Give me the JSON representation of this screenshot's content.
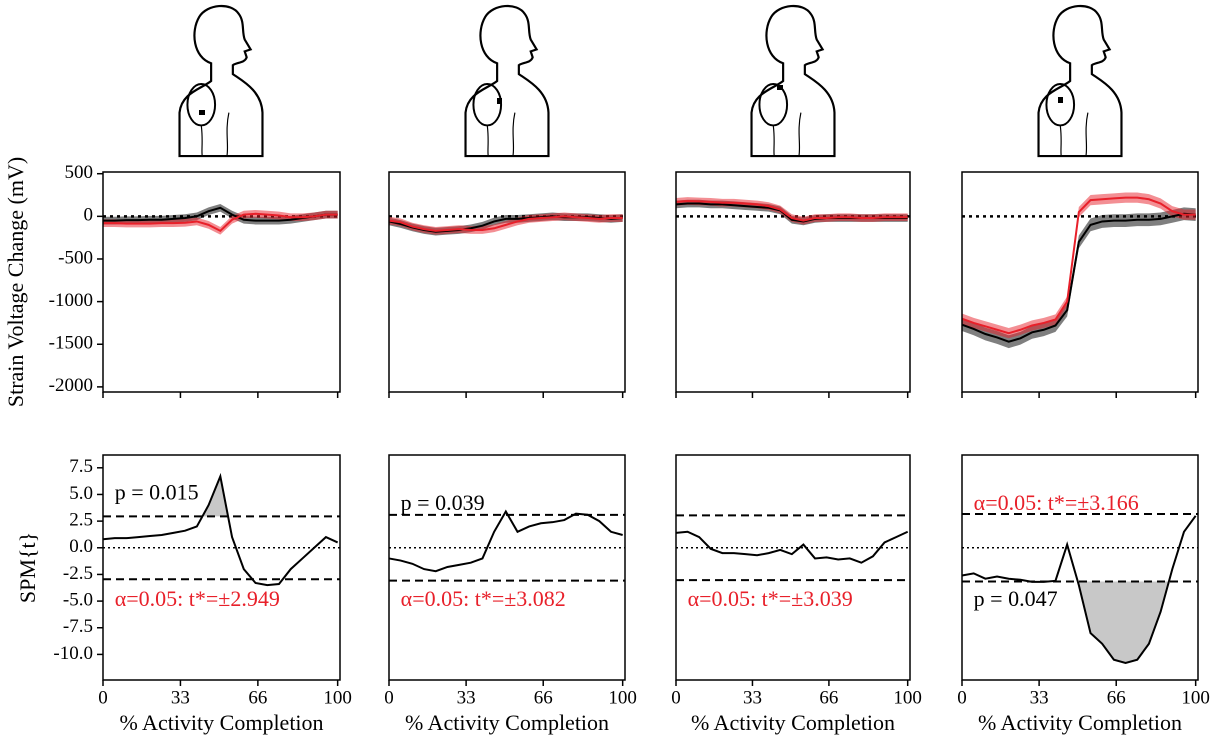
{
  "chart_data": [
    {
      "type": "band-line",
      "xlim": [
        0,
        101
      ],
      "ylim": [
        -2060,
        520
      ],
      "yticks": [
        500,
        0,
        -500,
        -1000,
        -1500,
        -2000
      ],
      "hline": 0,
      "ylabel": "Strain Voltage Change (mV)",
      "x": [
        0,
        5,
        10,
        15,
        20,
        25,
        30,
        35,
        40,
        45,
        50,
        55,
        60,
        65,
        70,
        75,
        80,
        85,
        90,
        95,
        100
      ],
      "series": [
        {
          "color": "#000000",
          "sd": 45,
          "values": [
            -50,
            -50,
            -45,
            -45,
            -40,
            -40,
            -30,
            -20,
            0,
            60,
            100,
            20,
            -40,
            -50,
            -50,
            -50,
            -40,
            -20,
            0,
            20,
            20
          ]
        },
        {
          "color": "#e8202a",
          "sd": 45,
          "values": [
            -80,
            -80,
            -85,
            -85,
            -85,
            -80,
            -80,
            -75,
            -60,
            -100,
            -170,
            -40,
            20,
            30,
            20,
            10,
            -10,
            -10,
            0,
            20,
            20
          ]
        }
      ]
    },
    {
      "type": "band-line",
      "xlim": [
        0,
        101
      ],
      "ylim": [
        -2060,
        520
      ],
      "hline": 0,
      "x": [
        0,
        5,
        10,
        15,
        20,
        25,
        30,
        35,
        40,
        45,
        50,
        55,
        60,
        65,
        70,
        75,
        80,
        85,
        90,
        95,
        100
      ],
      "series": [
        {
          "color": "#000000",
          "sd": 45,
          "values": [
            -60,
            -90,
            -130,
            -160,
            -180,
            -170,
            -160,
            -140,
            -110,
            -60,
            -30,
            -30,
            -20,
            -10,
            0,
            -10,
            -10,
            -10,
            -20,
            -30,
            -20
          ]
        },
        {
          "color": "#e8202a",
          "sd": 45,
          "values": [
            -50,
            -70,
            -120,
            -150,
            -170,
            -160,
            -150,
            -160,
            -160,
            -140,
            -100,
            -60,
            -30,
            -20,
            -10,
            0,
            -10,
            -20,
            -30,
            -20,
            -20
          ]
        }
      ]
    },
    {
      "type": "band-line",
      "xlim": [
        0,
        101
      ],
      "ylim": [
        -2060,
        520
      ],
      "hline": 0,
      "x": [
        0,
        5,
        10,
        15,
        20,
        25,
        30,
        35,
        40,
        45,
        50,
        55,
        60,
        65,
        70,
        75,
        80,
        85,
        90,
        95,
        100
      ],
      "series": [
        {
          "color": "#000000",
          "sd": 45,
          "values": [
            140,
            150,
            150,
            140,
            140,
            130,
            120,
            110,
            100,
            70,
            -40,
            -60,
            -30,
            -20,
            -20,
            -20,
            -20,
            -20,
            -20,
            -20,
            -20
          ]
        },
        {
          "color": "#e8202a",
          "sd": 45,
          "values": [
            170,
            180,
            175,
            170,
            160,
            160,
            150,
            140,
            120,
            80,
            -20,
            -50,
            -20,
            -20,
            -10,
            -10,
            -20,
            -20,
            -10,
            -10,
            -10
          ]
        }
      ]
    },
    {
      "type": "band-line",
      "xlim": [
        0,
        101
      ],
      "ylim": [
        -2060,
        520
      ],
      "hline": 0,
      "x": [
        0,
        5,
        10,
        15,
        20,
        25,
        30,
        35,
        40,
        45,
        50,
        55,
        60,
        65,
        70,
        75,
        80,
        85,
        90,
        95,
        100
      ],
      "series": [
        {
          "color": "#000000",
          "sd": 75,
          "values": [
            -1270,
            -1320,
            -1380,
            -1420,
            -1470,
            -1430,
            -1360,
            -1330,
            -1280,
            -1100,
            -300,
            -100,
            -60,
            -50,
            -50,
            -40,
            -40,
            -30,
            0,
            30,
            20
          ]
        },
        {
          "color": "#e8202a",
          "sd": 60,
          "values": [
            -1200,
            -1250,
            -1290,
            -1330,
            -1370,
            -1330,
            -1280,
            -1250,
            -1210,
            -1000,
            50,
            190,
            200,
            210,
            220,
            220,
            200,
            150,
            60,
            20,
            20
          ]
        }
      ]
    },
    {
      "type": "spm",
      "xlim": [
        0,
        101
      ],
      "ylim": [
        -12.4,
        8.7
      ],
      "yticks": [
        7.5,
        5.0,
        2.5,
        0.0,
        -2.5,
        -5.0,
        -7.5,
        -10.0
      ],
      "xticks": [
        0,
        33,
        66,
        100
      ],
      "ylabel": "SPM{t}",
      "xlabel": "% Activity Completion",
      "hline": 0,
      "threshold": 2.949,
      "clusters": [
        [
          42.4,
          53.2
        ]
      ],
      "annotations": [
        {
          "text": "p = 0.015",
          "color": "#000000"
        },
        {
          "text": "α=0.05: t*=±2.949",
          "color": "#e8202a"
        }
      ],
      "x": [
        0,
        5,
        10,
        15,
        20,
        25,
        30,
        35,
        40,
        45,
        50,
        55,
        60,
        65,
        70,
        75,
        80,
        85,
        90,
        95,
        100
      ],
      "values": [
        0.8,
        0.9,
        0.9,
        1.0,
        1.1,
        1.2,
        1.4,
        1.6,
        2.0,
        4.0,
        6.7,
        1.0,
        -2.0,
        -3.3,
        -3.5,
        -3.4,
        -2.0,
        -1.0,
        0.0,
        1.0,
        0.5
      ]
    },
    {
      "type": "spm",
      "xlim": [
        0,
        101
      ],
      "ylim": [
        -12.4,
        8.7
      ],
      "xticks": [
        0,
        33,
        66,
        100
      ],
      "xlabel": "% Activity Completion",
      "hline": 0,
      "threshold": 3.082,
      "clusters": [],
      "annotations": [
        {
          "text": "p = 0.039",
          "color": "#000000"
        },
        {
          "text": "α=0.05: t*=±3.082",
          "color": "#e8202a"
        }
      ],
      "x": [
        0,
        5,
        10,
        15,
        20,
        25,
        30,
        35,
        40,
        45,
        50,
        55,
        60,
        65,
        70,
        75,
        80,
        85,
        90,
        95,
        100
      ],
      "values": [
        -1.0,
        -1.2,
        -1.5,
        -2.0,
        -2.2,
        -1.8,
        -1.6,
        -1.4,
        -1.0,
        1.5,
        3.4,
        1.5,
        2.0,
        2.3,
        2.4,
        2.6,
        3.2,
        3.1,
        2.5,
        1.5,
        1.2
      ]
    },
    {
      "type": "spm",
      "xlim": [
        0,
        101
      ],
      "ylim": [
        -12.4,
        8.7
      ],
      "xticks": [
        0,
        33,
        66,
        100
      ],
      "xlabel": "% Activity Completion",
      "hline": 0,
      "threshold": 3.039,
      "clusters": [],
      "annotations": [
        {
          "text": "α=0.05: t*=±3.039",
          "color": "#e8202a"
        }
      ],
      "x": [
        0,
        5,
        10,
        15,
        20,
        25,
        30,
        35,
        40,
        45,
        50,
        55,
        60,
        65,
        70,
        75,
        80,
        85,
        90,
        95,
        100
      ],
      "values": [
        1.4,
        1.5,
        1.0,
        -0.1,
        -0.5,
        -0.5,
        -0.6,
        -0.7,
        -0.5,
        -0.2,
        -0.6,
        0.3,
        -1.0,
        -0.9,
        -1.1,
        -1.0,
        -1.4,
        -0.8,
        0.5,
        1.0,
        1.5
      ]
    },
    {
      "type": "spm",
      "xlim": [
        0,
        101
      ],
      "ylim": [
        -12.4,
        8.7
      ],
      "xticks": [
        0,
        33,
        66,
        100
      ],
      "xlabel": "% Activity Completion",
      "hline": 0,
      "threshold": 3.166,
      "clusters": [
        [
          49.6,
          88.5
        ]
      ],
      "annotations": [
        {
          "text": "α=0.05: t*=±3.166",
          "color": "#e8202a"
        },
        {
          "text": "p = 0.047",
          "color": "#000000"
        }
      ],
      "x": [
        0,
        5,
        10,
        15,
        20,
        25,
        30,
        35,
        40,
        45,
        50,
        55,
        60,
        65,
        70,
        75,
        80,
        85,
        90,
        95,
        100
      ],
      "values": [
        -2.6,
        -2.4,
        -2.9,
        -2.7,
        -2.9,
        -3.0,
        -3.2,
        -3.2,
        -3.1,
        0.3,
        -3.5,
        -8.0,
        -9.0,
        -10.5,
        -10.8,
        -10.5,
        -9.0,
        -6.0,
        -2.0,
        1.5,
        3.0
      ]
    }
  ]
}
